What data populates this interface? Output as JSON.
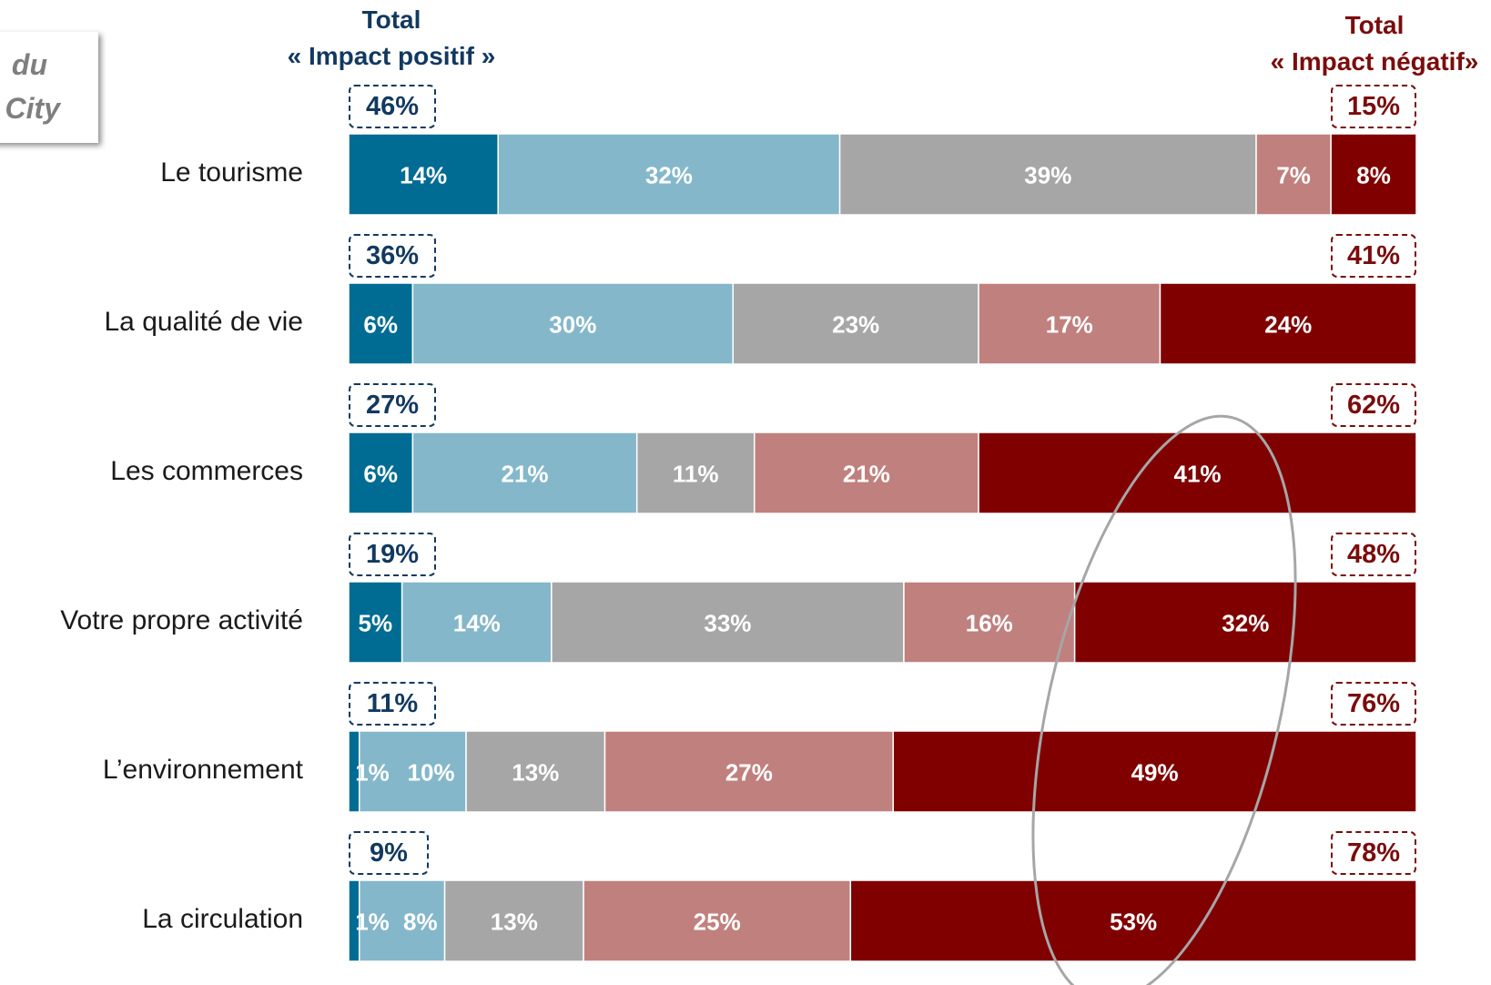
{
  "header": {
    "positive_line1": "Total",
    "positive_line2": "« Impact positif »",
    "negative_line1": "Total",
    "negative_line2": "« Impact négatif»"
  },
  "callout": {
    "line1": "du",
    "line2": "City"
  },
  "chart_data": {
    "type": "bar",
    "orientation": "horizontal",
    "stacked": true,
    "normalized_100": true,
    "categories": [
      "Le tourisme",
      "La qualité de vie",
      "Les commerces",
      "Votre propre activité",
      "L’environnement",
      "La circulation"
    ],
    "series": [
      {
        "values": [
          14,
          6,
          6,
          5,
          1,
          1
        ],
        "labels": [
          "14%",
          "6%",
          "6%",
          "5%",
          "1%",
          "1%"
        ],
        "color": "#006c93"
      },
      {
        "values": [
          32,
          30,
          21,
          14,
          10,
          8
        ],
        "labels": [
          "32%",
          "30%",
          "21%",
          "14%",
          "10%",
          "8%"
        ],
        "color": "#84b7ca"
      },
      {
        "values": [
          39,
          23,
          11,
          33,
          13,
          13
        ],
        "labels": [
          "39%",
          "23%",
          "11%",
          "33%",
          "13%",
          "13%"
        ],
        "color": "#a6a6a6"
      },
      {
        "values": [
          7,
          17,
          21,
          16,
          27,
          25
        ],
        "labels": [
          "7%",
          "17%",
          "21%",
          "16%",
          "27%",
          "25%"
        ],
        "color": "#c0807e"
      },
      {
        "values": [
          8,
          24,
          41,
          32,
          49,
          53
        ],
        "labels": [
          "8%",
          "24%",
          "41%",
          "32%",
          "49%",
          "53%"
        ],
        "color": "#800000"
      }
    ],
    "total_positive": [
      "46%",
      "36%",
      "27%",
      "19%",
      "11%",
      "9%"
    ],
    "total_negative": [
      "15%",
      "41%",
      "62%",
      "48%",
      "76%",
      "78%"
    ],
    "annotation": "ellipse highlighting the darkest negative segments"
  }
}
